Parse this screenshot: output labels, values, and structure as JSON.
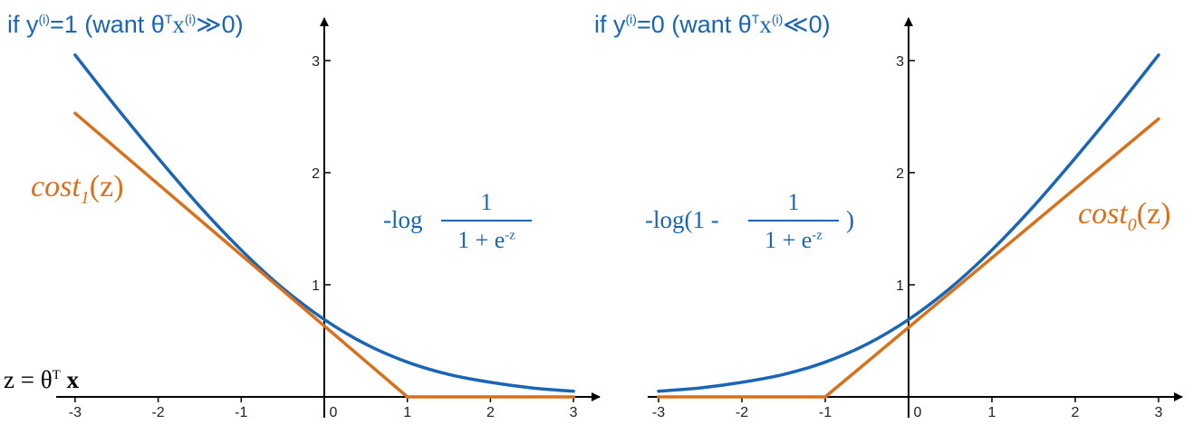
{
  "headers": {
    "left": {
      "prefix": "if y",
      "sup1": "(i)",
      "mid": "=1 (want ",
      "theta": "θ",
      "supT": "T",
      "x": "x",
      "sup2": "(i)",
      "suffix": "≫0)"
    },
    "right": {
      "prefix": "if y",
      "sup1": "(i)",
      "mid": "=0 (want ",
      "theta": "θ",
      "supT": "T",
      "x": "x",
      "sup2": "(i)",
      "suffix": "≪0)"
    }
  },
  "formulas": {
    "left": {
      "prefix": "-log",
      "numerator": "1",
      "denominator": "1 + e",
      "exp": "-z"
    },
    "right": {
      "prefix": "-log(1 -",
      "numerator": "1",
      "denominator": "1 + e",
      "exp": "-z",
      "suffix": ")"
    }
  },
  "labels": {
    "cost1": {
      "text": "cost",
      "sub": "1",
      "arg": "(z)"
    },
    "cost0": {
      "text": "cost",
      "sub": "0",
      "arg": "(z)"
    },
    "z_axis": {
      "lhs": "z = ",
      "theta": "θ",
      "sup": "T",
      "x": "x"
    }
  },
  "colors": {
    "logistic": "#1a66b5",
    "hinge": "#d9711c",
    "axis": "#000000"
  },
  "chart_data": [
    {
      "type": "line",
      "xlim": [
        -3,
        3
      ],
      "ylim": [
        0,
        3
      ],
      "x_ticks": [
        -3,
        -2,
        -1,
        0,
        1,
        2,
        3
      ],
      "y_ticks": [
        1,
        2,
        3
      ],
      "series": [
        {
          "color": "#1a66b5",
          "x": [
            -3,
            -2.5,
            -2,
            -1.5,
            -1,
            -0.5,
            0,
            0.5,
            1,
            1.5,
            2,
            2.5,
            3
          ],
          "y": [
            3.05,
            2.58,
            2.13,
            1.7,
            1.31,
            0.97,
            0.69,
            0.47,
            0.31,
            0.2,
            0.13,
            0.08,
            0.05
          ]
        },
        {
          "color": "#d9711c",
          "x": [
            -3,
            1,
            3
          ],
          "y": [
            2.53,
            0,
            0
          ]
        }
      ]
    },
    {
      "type": "line",
      "xlim": [
        -3,
        3
      ],
      "ylim": [
        0,
        3
      ],
      "x_ticks": [
        -3,
        -2,
        -1,
        0,
        1,
        2,
        3
      ],
      "y_ticks": [
        1,
        2,
        3
      ],
      "series": [
        {
          "color": "#1a66b5",
          "x": [
            -3,
            -2.5,
            -2,
            -1.5,
            -1,
            -0.5,
            0,
            0.5,
            1,
            1.5,
            2,
            2.5,
            3
          ],
          "y": [
            0.05,
            0.08,
            0.13,
            0.2,
            0.31,
            0.47,
            0.69,
            0.97,
            1.31,
            1.7,
            2.13,
            2.58,
            3.05
          ]
        },
        {
          "color": "#d9711c",
          "x": [
            -3,
            -1,
            3
          ],
          "y": [
            0,
            0,
            2.48
          ]
        }
      ]
    }
  ]
}
